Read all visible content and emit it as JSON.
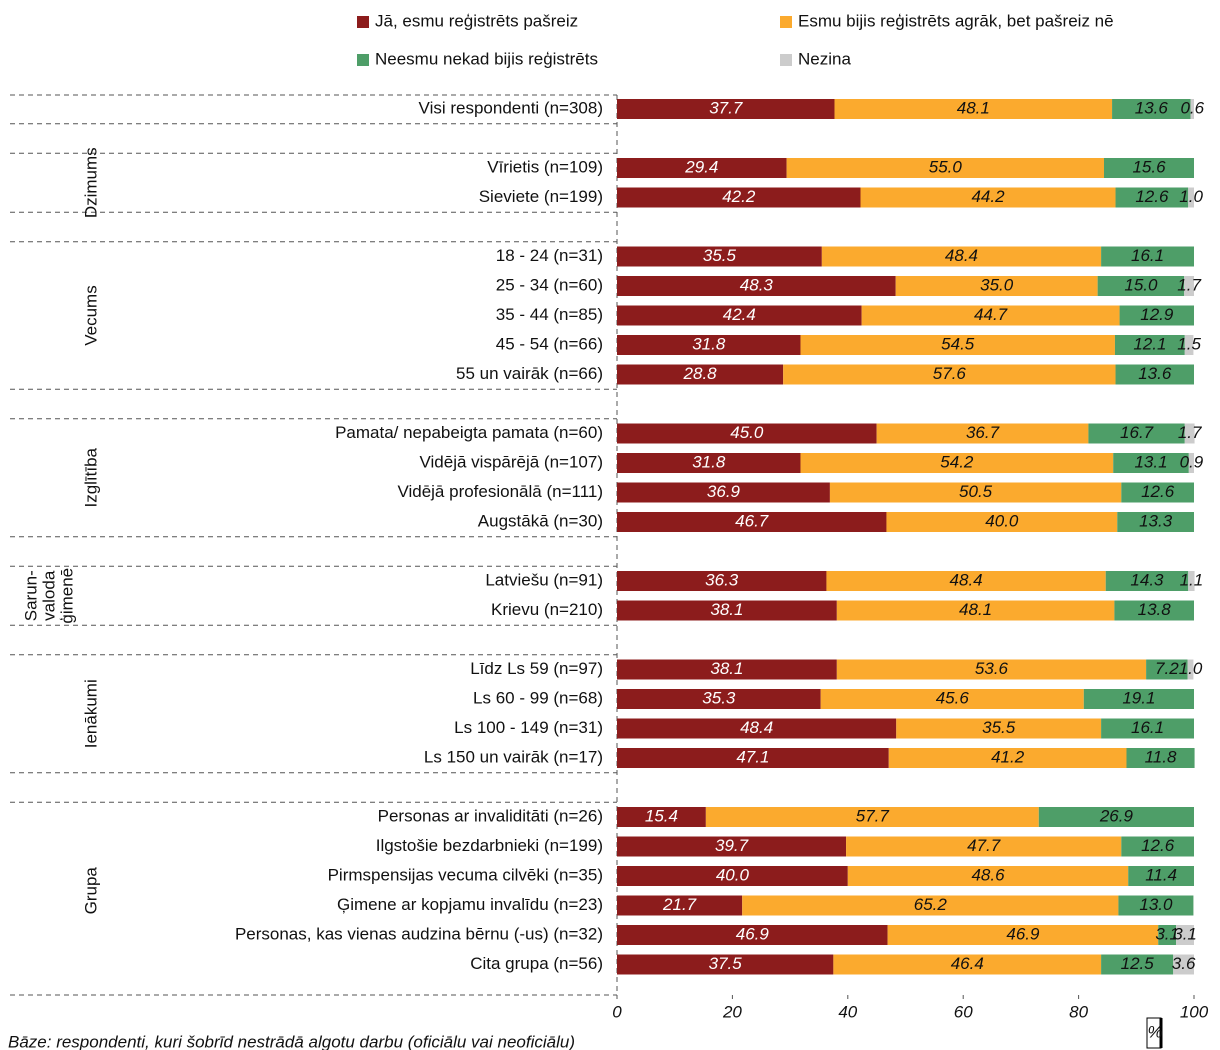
{
  "chart_data": {
    "type": "stacked-barh",
    "categories": [
      "Visi respondenti (n=308)",
      null,
      "Vīrietis (n=109)",
      "Sieviete (n=199)",
      null,
      "18 - 24 (n=31)",
      "25 - 34 (n=60)",
      "35 - 44 (n=85)",
      "45 - 54 (n=66)",
      "55 un vairāk (n=66)",
      null,
      "Pamata/ nepabeigta pamata (n=60)",
      "Vidējā vispārējā (n=107)",
      "Vidējā profesionālā (n=111)",
      "Augstākā (n=30)",
      null,
      "Latviešu (n=91)",
      "Krievu (n=210)",
      null,
      "Līdz Ls 59 (n=97)",
      "Ls 60 - 99 (n=68)",
      "Ls 100 - 149 (n=31)",
      "Ls 150 un vairāk (n=17)",
      null,
      "Personas ar invaliditāti (n=26)",
      "Ilgstošie bezdarbnieki (n=199)",
      "Pirmspensijas vecuma cilvēki (n=35)",
      "Ģimene ar kopjamu invalīdu (n=23)",
      "Personas, kas vienas audzina bērnu (-us) (n=32)",
      "Cita grupa (n=56)"
    ],
    "groups": [
      [
        "Dzimums"
      ],
      [
        "Vecums"
      ],
      [
        "Izglītība"
      ],
      [
        "Sarun-",
        "valoda",
        "ģimenē"
      ],
      [
        "Ienākumi"
      ],
      [
        "Grupa"
      ]
    ],
    "series": [
      {
        "name": "Jā, esmu reģistrēts pašreiz",
        "color": "#8c1c1c",
        "label_color": "#ffffff",
        "values": [
          37.7,
          null,
          29.4,
          42.2,
          null,
          35.5,
          48.3,
          42.4,
          31.8,
          28.8,
          null,
          45.0,
          31.8,
          36.9,
          46.7,
          null,
          36.3,
          38.1,
          null,
          38.1,
          35.3,
          48.4,
          47.1,
          null,
          15.4,
          39.7,
          40.0,
          21.7,
          46.9,
          37.5
        ],
        "value_labels": [
          "37.7",
          null,
          "29.4",
          "42.2",
          null,
          "35.5",
          "48.3",
          "42.4",
          "31.8",
          "28.8",
          null,
          "45.0",
          "31.8",
          "36.9",
          "46.7",
          null,
          "36.3",
          "38.1",
          null,
          "38.1",
          "35.3",
          "48.4",
          "47.1",
          null,
          "15.4",
          "39.7",
          "40.0",
          "21.7",
          "46.9",
          "37.5"
        ]
      },
      {
        "name": "Esmu bijis reģistrēts agrāk, bet pašreiz nē",
        "color": "#fbaa2e",
        "label_color": "#111111",
        "values": [
          48.1,
          null,
          55.0,
          44.2,
          null,
          48.4,
          35.0,
          44.7,
          54.5,
          57.6,
          null,
          36.7,
          54.2,
          50.5,
          40.0,
          null,
          48.4,
          48.1,
          null,
          53.6,
          45.6,
          35.5,
          41.2,
          null,
          57.7,
          47.7,
          48.6,
          65.2,
          46.9,
          46.4
        ],
        "value_labels": [
          "48.1",
          null,
          "55.0",
          "44.2",
          null,
          "48.4",
          "35.0",
          "44.7",
          "54.5",
          "57.6",
          null,
          "36.7",
          "54.2",
          "50.5",
          "40.0",
          null,
          "48.4",
          "48.1",
          null,
          "53.6",
          "45.6",
          "35.5",
          "41.2",
          null,
          "57.7",
          "47.7",
          "48.6",
          "65.2",
          "46.9",
          "46.4"
        ]
      },
      {
        "name": "Neesmu nekad bijis reģistrēts",
        "color": "#4e9e68",
        "label_color": "#111111",
        "values": [
          13.6,
          null,
          15.6,
          12.6,
          null,
          16.1,
          15.0,
          12.9,
          12.1,
          13.6,
          null,
          16.7,
          13.1,
          12.6,
          13.3,
          null,
          14.3,
          13.8,
          null,
          7.2,
          19.1,
          16.1,
          11.8,
          null,
          26.9,
          12.6,
          11.4,
          13.0,
          3.1,
          12.5
        ],
        "value_labels": [
          "13.6",
          null,
          "15.6",
          "12.6",
          null,
          "16.1",
          "15.0",
          "12.9",
          "12.1",
          "13.6",
          null,
          "16.7",
          "13.1",
          "12.6",
          "13.3",
          null,
          "14.3",
          "13.8",
          null,
          "7.2",
          "19.1",
          "16.1",
          "11.8",
          null,
          "26.9",
          "12.6",
          "11.4",
          "13.0",
          "3.1",
          "12.5"
        ]
      },
      {
        "name": "Nezina",
        "color": "#cccccc",
        "label_color": "#111111",
        "values": [
          0.6,
          null,
          null,
          1.0,
          null,
          null,
          1.7,
          null,
          1.5,
          null,
          null,
          1.7,
          0.9,
          null,
          null,
          null,
          1.1,
          null,
          null,
          1.0,
          null,
          null,
          null,
          null,
          null,
          null,
          null,
          null,
          3.1,
          3.6
        ],
        "value_labels": [
          "0.6",
          null,
          null,
          "1.0",
          null,
          null,
          "1.7",
          null,
          "1.5",
          null,
          null,
          "1.7",
          "0.9",
          null,
          null,
          null,
          "1.1",
          null,
          null,
          "1.0",
          null,
          null,
          null,
          null,
          null,
          null,
          null,
          null,
          "3.1",
          "3.6"
        ]
      }
    ],
    "xlim": [
      0,
      100
    ],
    "xticks": [
      0,
      20,
      40,
      60,
      80,
      100
    ],
    "x_unit": "%",
    "footnote": "Bāze: respondenti, kuri šobrīd nestrādā algotu darbu (oficiālu vai neoficiālu)"
  }
}
